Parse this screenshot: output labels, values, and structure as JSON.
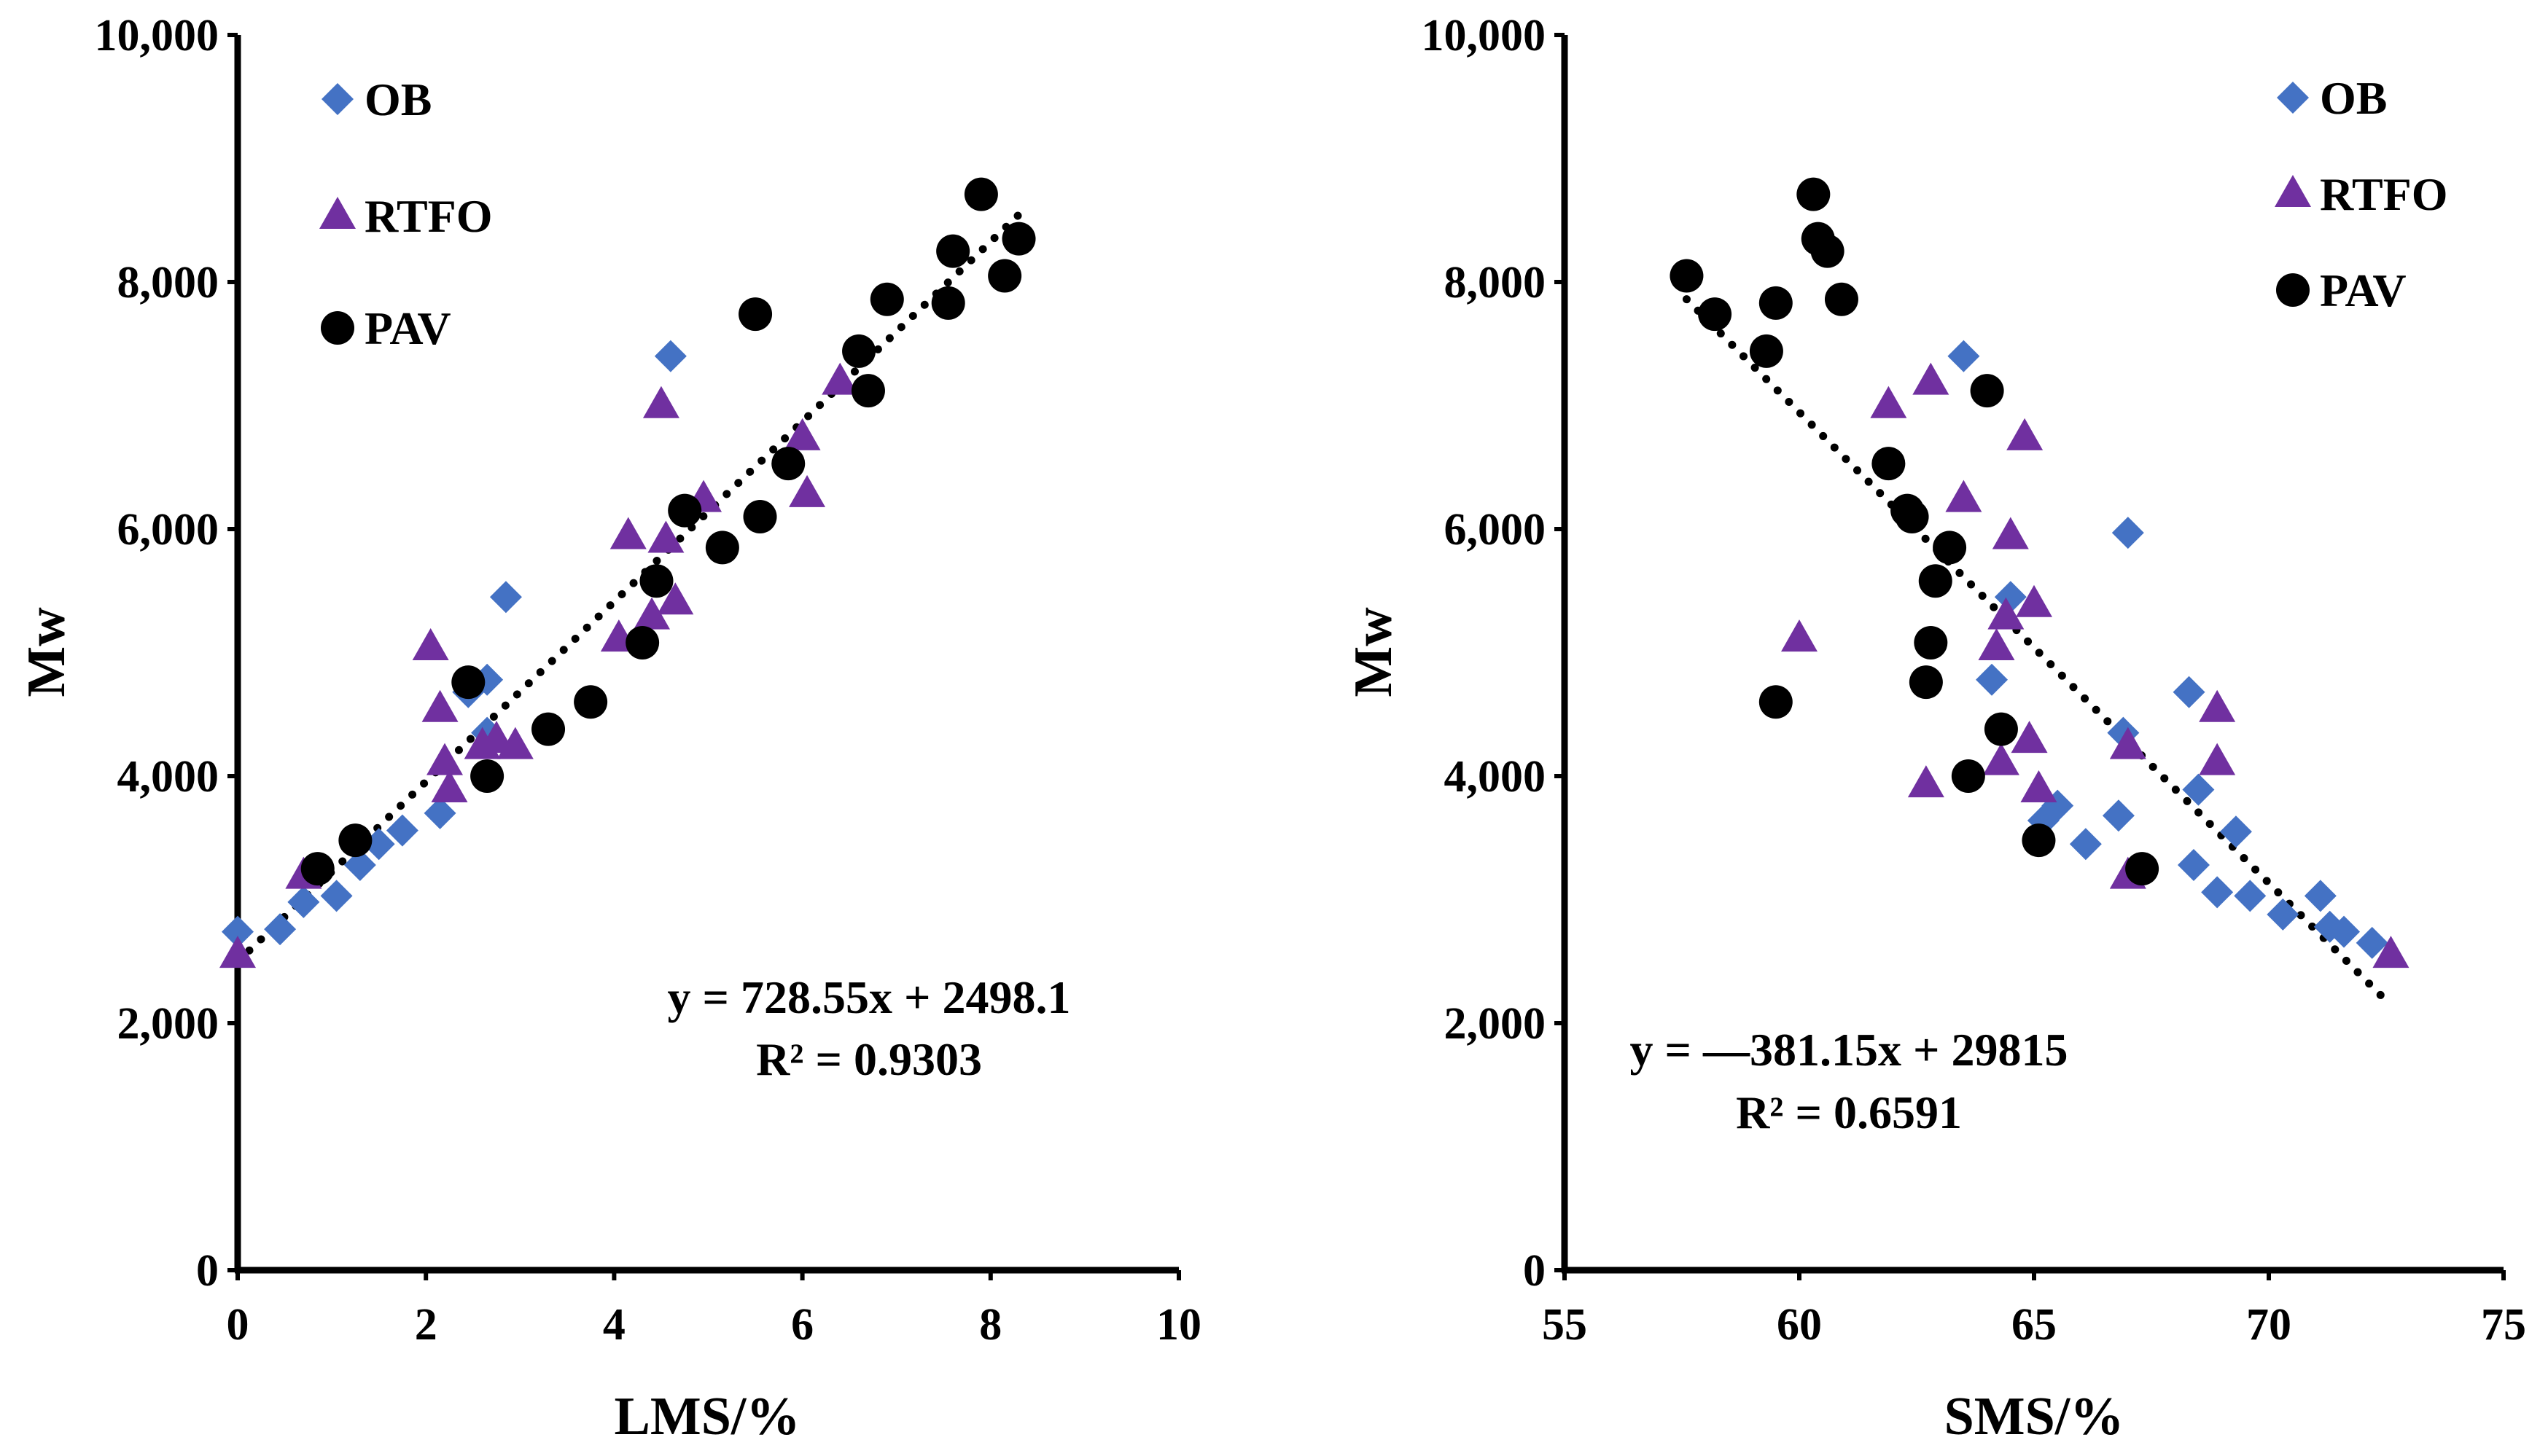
{
  "colors": {
    "ob": "#4472C4",
    "rtfo": "#7030A0",
    "pav": "#000000"
  },
  "chart_data": [
    {
      "type": "scatter",
      "title": "",
      "xlabel": "LMS/%",
      "ylabel": "Mw",
      "xlim": [
        0,
        10
      ],
      "ylim": [
        0,
        10000
      ],
      "x_ticks": [
        "0",
        "2",
        "4",
        "6",
        "8",
        "10"
      ],
      "y_ticks": [
        "0",
        "2,000",
        "4,000",
        "6,000",
        "8,000",
        "10,000"
      ],
      "legend_position": "top-left",
      "series": [
        {
          "name": "OB",
          "marker": "diamond",
          "color": "#4472C4",
          "x": [
            0.0,
            0.45,
            0.7,
            1.05,
            1.3,
            1.5,
            1.75,
            2.15,
            2.45,
            2.65,
            2.65,
            2.85,
            4.6
          ],
          "y": [
            2740,
            2760,
            2980,
            3030,
            3280,
            3450,
            3560,
            3700,
            4680,
            4780,
            4350,
            5450,
            7400
          ]
        },
        {
          "name": "RTFO",
          "marker": "triangle",
          "color": "#7030A0",
          "x": [
            0.0,
            0.7,
            2.05,
            2.15,
            2.2,
            2.25,
            2.6,
            2.75,
            2.95,
            4.05,
            4.15,
            4.4,
            4.5,
            4.55,
            4.65,
            4.95,
            6.0,
            6.05,
            6.4
          ],
          "y": [
            2560,
            3200,
            5050,
            4550,
            4120,
            3900,
            4250,
            4300,
            4250,
            5120,
            5950,
            5300,
            7010,
            5920,
            5420,
            6250,
            6750,
            6290,
            7200
          ]
        },
        {
          "name": "PAV",
          "marker": "circle",
          "color": "#000000",
          "x": [
            0.85,
            1.25,
            2.45,
            2.65,
            3.3,
            3.75,
            4.3,
            4.45,
            4.75,
            5.15,
            5.5,
            5.55,
            5.85,
            6.6,
            6.7,
            6.9,
            7.55,
            7.6,
            7.9,
            8.15,
            8.3
          ],
          "y": [
            3250,
            3480,
            4760,
            4000,
            4380,
            4600,
            5080,
            5580,
            6150,
            5850,
            7740,
            6100,
            6530,
            7440,
            7120,
            7860,
            7830,
            8250,
            8710,
            8050,
            8350
          ]
        }
      ],
      "trendline": {
        "slope": 728.55,
        "intercept": 2498.1,
        "x_range": [
          0,
          8.3
        ]
      },
      "equation": "y = 728.55x + 2498.1",
      "r_squared": "R² = 0.9303"
    },
    {
      "type": "scatter",
      "title": "",
      "xlabel": "SMS/%",
      "ylabel": "Mw",
      "xlim": [
        55,
        75
      ],
      "ylim": [
        0,
        10000
      ],
      "x_ticks": [
        "55",
        "60",
        "65",
        "70",
        "75"
      ],
      "y_ticks": [
        "0",
        "2,000",
        "4,000",
        "6,000",
        "8,000",
        "10,000"
      ],
      "legend_position": "top-right",
      "series": [
        {
          "name": "OB",
          "marker": "diamond",
          "color": "#4472C4",
          "x": [
            63.5,
            64.5,
            64.1,
            65.2,
            65.5,
            66.1,
            66.8,
            67.0,
            66.9,
            68.3,
            68.5,
            68.4,
            68.9,
            69.3,
            69.6,
            70.3,
            71.1,
            71.3,
            71.6,
            72.2
          ],
          "y": [
            7400,
            5450,
            4780,
            3640,
            3760,
            3450,
            3680,
            5970,
            4350,
            4680,
            3890,
            3280,
            3060,
            3550,
            3030,
            2880,
            3030,
            2780,
            2740,
            2650
          ]
        },
        {
          "name": "RTFO",
          "marker": "triangle",
          "color": "#7030A0",
          "x": [
            60.0,
            61.9,
            62.8,
            62.7,
            63.5,
            64.2,
            64.3,
            64.5,
            64.8,
            64.9,
            64.4,
            65.1,
            65.0,
            67.0,
            67.0,
            68.9,
            68.9,
            72.6
          ],
          "y": [
            5120,
            7010,
            7200,
            3940,
            6250,
            5050,
            4120,
            5950,
            6750,
            4300,
            5300,
            3900,
            5400,
            4250,
            3200,
            4550,
            4120,
            2560
          ]
        },
        {
          "name": "PAV",
          "marker": "circle",
          "color": "#000000",
          "x": [
            57.6,
            58.2,
            59.3,
            59.5,
            59.5,
            60.3,
            60.4,
            60.6,
            60.9,
            61.9,
            62.3,
            62.4,
            62.7,
            62.8,
            62.9,
            63.2,
            63.6,
            64.0,
            64.3,
            65.1,
            67.3
          ],
          "y": [
            8050,
            7740,
            7440,
            7830,
            4600,
            8710,
            8350,
            8250,
            7860,
            6530,
            6150,
            6100,
            4760,
            5080,
            5580,
            5850,
            4000,
            7120,
            4380,
            3480,
            3250
          ]
        }
      ],
      "trendline": {
        "slope": -381.15,
        "intercept": 29815,
        "x_range": [
          57.6,
          72.6
        ]
      },
      "equation": "y = —381.15x + 29815",
      "r_squared": "R² = 0.6591"
    }
  ]
}
